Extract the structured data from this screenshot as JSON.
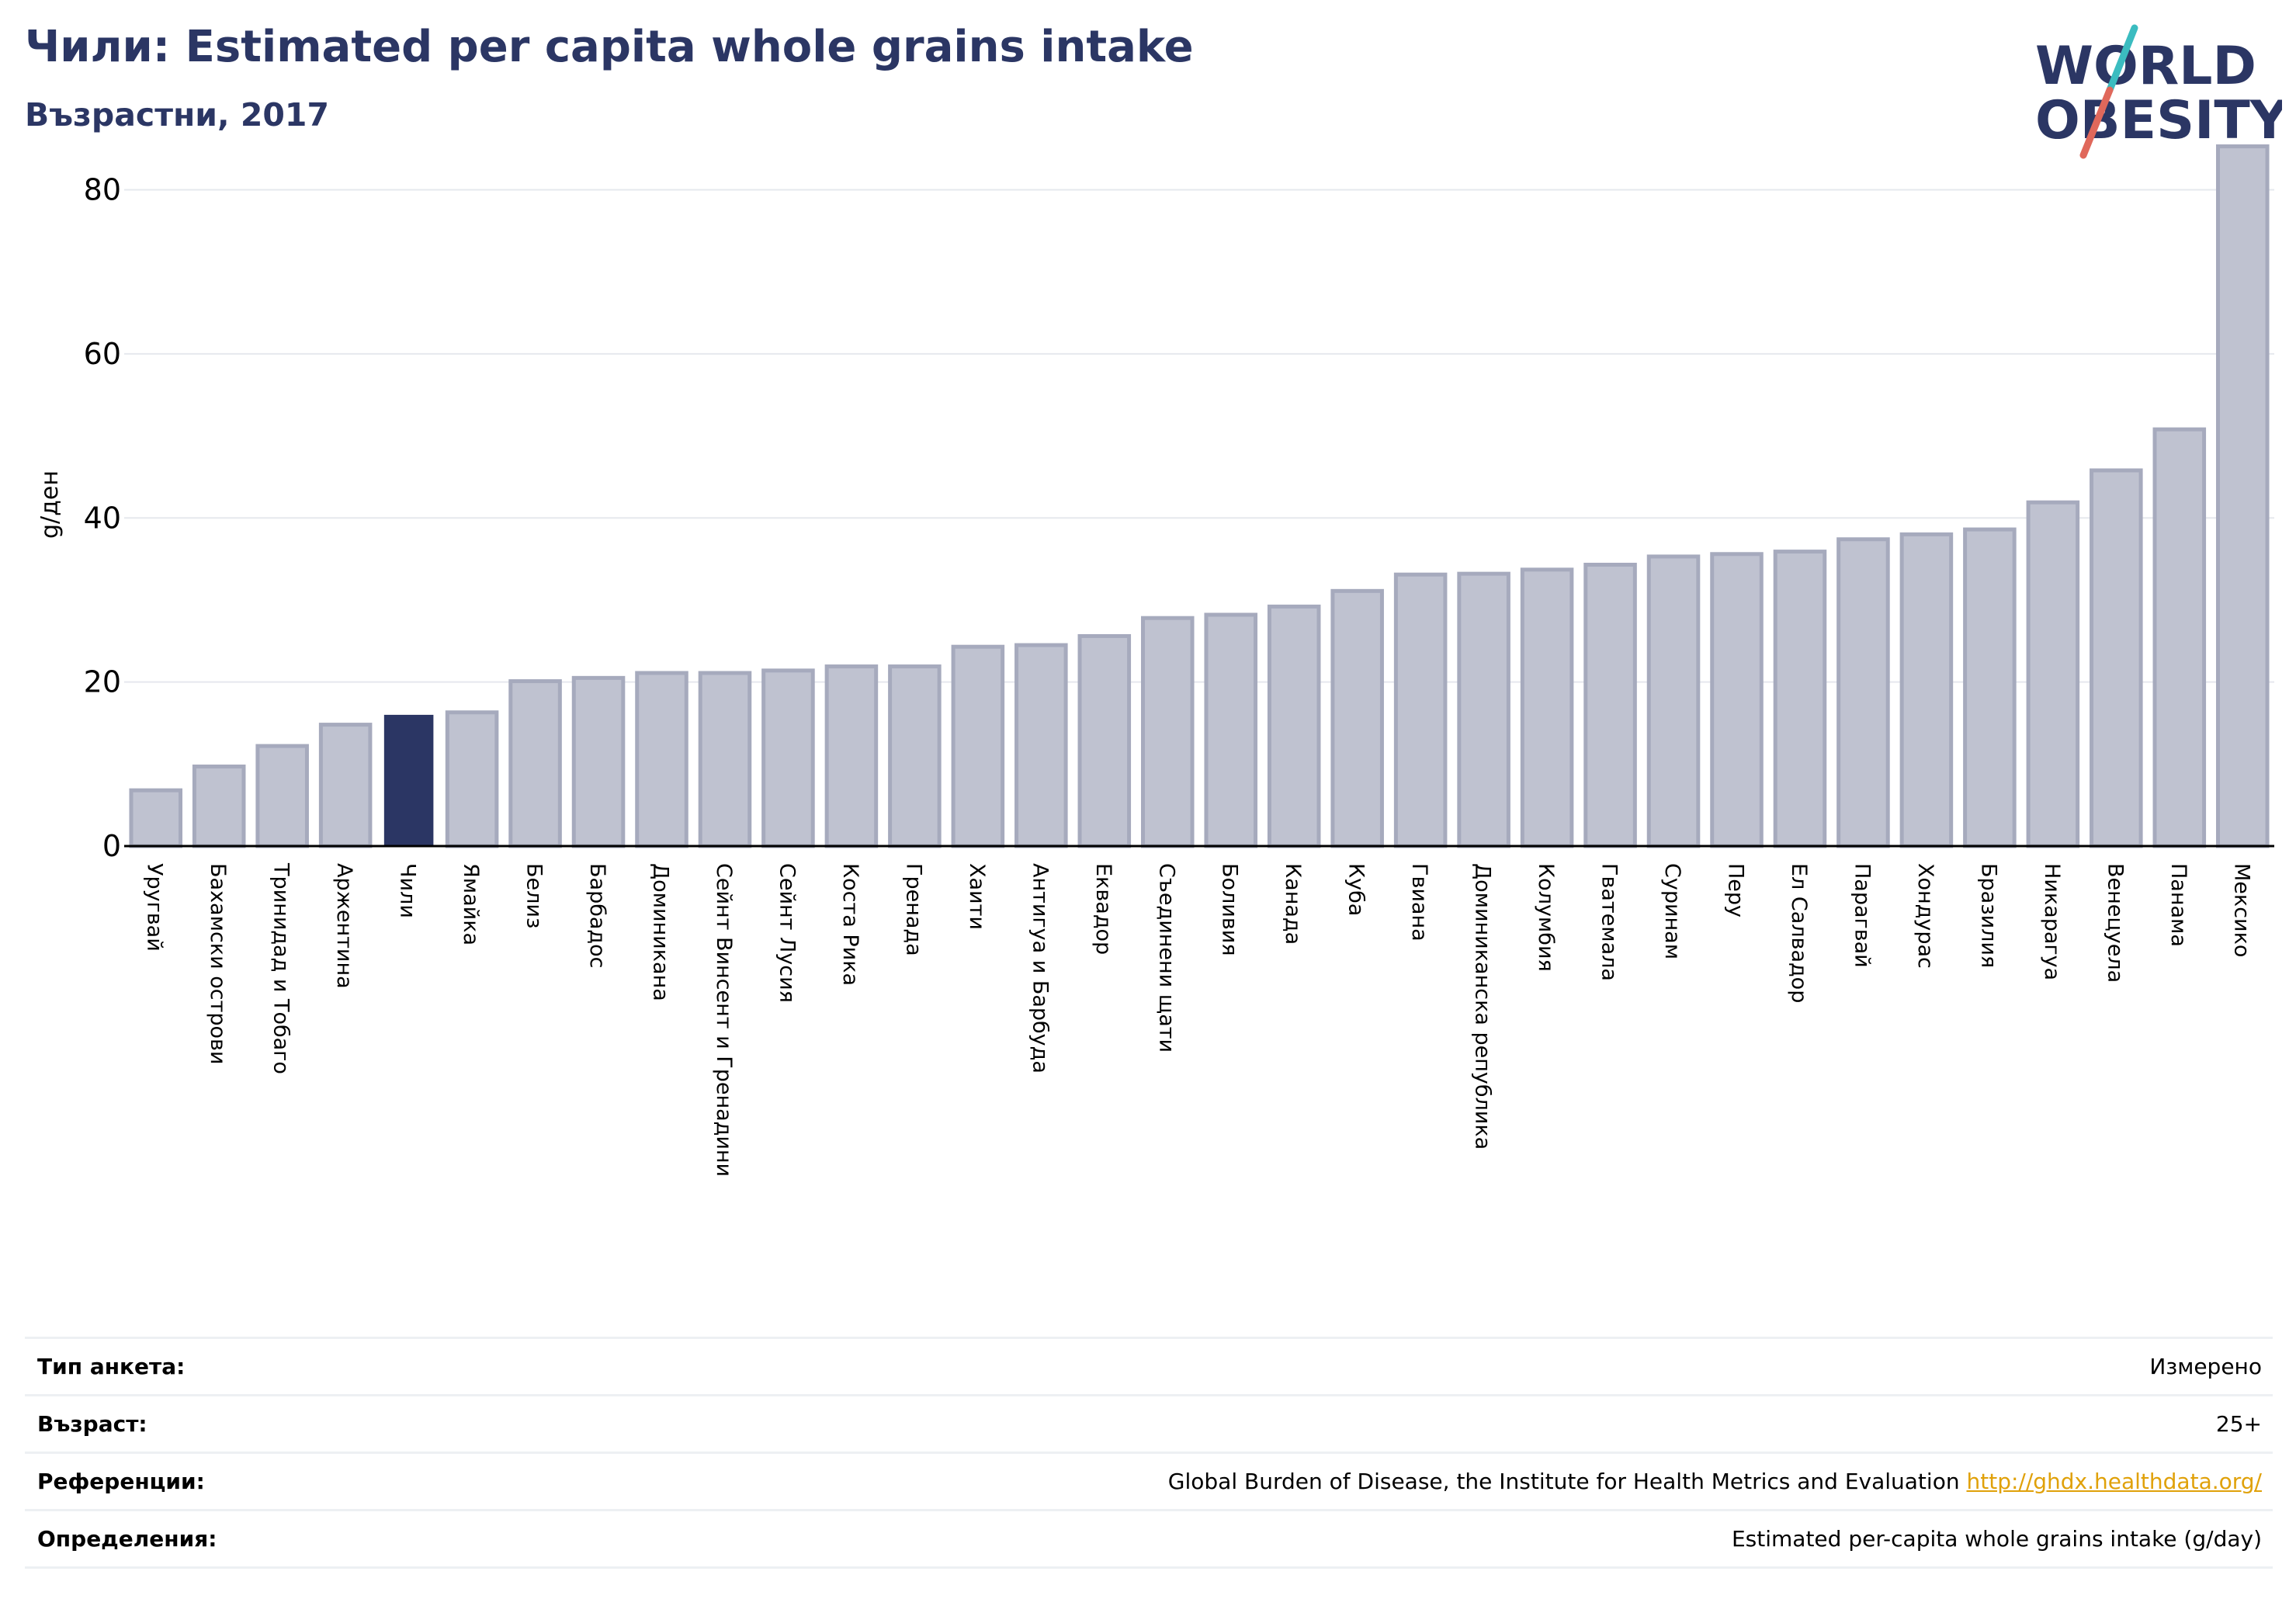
{
  "header": {
    "title": "Чили: Estimated per capita whole grains intake",
    "subtitle": "Възрастни, 2017"
  },
  "logo": {
    "line1": "WORLD",
    "line2": "OBESITY",
    "colors": {
      "text": "#2b3664",
      "slash_teal": "#3bbcc0",
      "slash_red": "#e0685b"
    }
  },
  "colors": {
    "highlight": "#2b3664",
    "bar_fill": "#bfc2d0",
    "bar_stroke": "#a6aabd",
    "grid": "#e6e8ee",
    "link": "#e0a10a"
  },
  "chart_data": {
    "type": "bar",
    "ylabel": "g/ден",
    "ylim": [
      0,
      88
    ],
    "yticks": [
      0,
      20,
      40,
      60,
      80
    ],
    "grid": true,
    "highlight": "Чили",
    "categories": [
      "Уругвай",
      "Бахамски острови",
      "Тринидад и Тобаго",
      "Аржентина",
      "Чили",
      "Ямайка",
      "Белиз",
      "Барбадос",
      "Доминикана",
      "Сейнт Винсент и Гренадини",
      "Сейнт Лусия",
      "Коста Рика",
      "Гренада",
      "Хаити",
      "Антигуа и Барбуда",
      "Еквадор",
      "Съединени щати",
      "Боливия",
      "Канада",
      "Куба",
      "Гвиана",
      "Доминиканска република",
      "Колумбия",
      "Гватемала",
      "Суринам",
      "Перу",
      "Ел Салвадор",
      "Парагвай",
      "Хондурас",
      "Бразилия",
      "Никарагуа",
      "Венецуела",
      "Панама",
      "Мексико"
    ],
    "values": [
      6.8,
      9.7,
      12.2,
      14.8,
      16.0,
      16.3,
      20.1,
      20.5,
      21.1,
      21.1,
      21.4,
      21.9,
      21.9,
      24.3,
      24.5,
      25.6,
      27.8,
      28.2,
      29.2,
      31.1,
      33.1,
      33.2,
      33.7,
      34.3,
      35.3,
      35.6,
      35.9,
      37.4,
      38.0,
      38.6,
      41.9,
      45.8,
      50.8,
      85.3
    ]
  },
  "metadata": {
    "rows": [
      {
        "label": "Тип анкета:",
        "value": "Измерено"
      },
      {
        "label": "Възраст:",
        "value": "25+"
      },
      {
        "label": "Референции:",
        "value": "Global Burden of Disease, the Institute for Health Metrics and Evaluation",
        "link": "http://ghdx.healthdata.org/"
      },
      {
        "label": "Определения:",
        "value": "Estimated per-capita whole grains intake (g/day)"
      }
    ]
  }
}
